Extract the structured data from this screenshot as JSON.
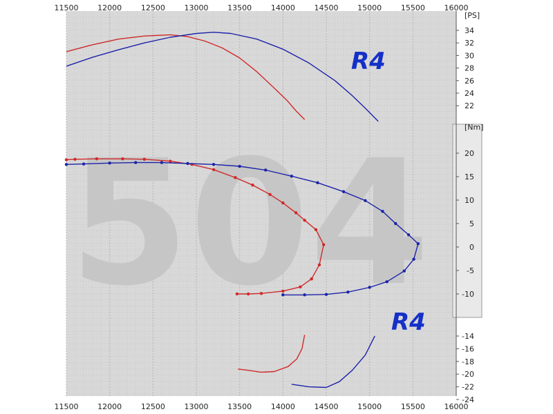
{
  "chart_data": {
    "type": "line",
    "title": "",
    "xlabel": "",
    "x_range": [
      11500,
      16000
    ],
    "x_ticks": [
      "11500",
      "12000",
      "12500",
      "13000",
      "13500",
      "14000",
      "14500",
      "15000",
      "15500",
      "16000"
    ],
    "grid": true,
    "watermark": "504",
    "logos": [
      "R4",
      "R4"
    ],
    "colors": {
      "red": "#d02828",
      "blue": "#1c22a8",
      "plot_bg": "#d8d8d8",
      "panel": "#e9e9e9"
    },
    "axes": {
      "power": {
        "unit": "[PS]",
        "range": [
          22,
          34
        ],
        "ticks": [
          "22",
          "24",
          "26",
          "28",
          "30",
          "32",
          "34"
        ]
      },
      "torque": {
        "unit": "[Nm]",
        "range": [
          -10,
          20
        ],
        "ticks": [
          "20",
          "15",
          "10",
          "5",
          "0",
          "-5",
          "-10"
        ]
      },
      "lower": {
        "range": [
          -24,
          -14
        ],
        "ticks": [
          "-14",
          "-16",
          "-18",
          "-20",
          "-22",
          "-24"
        ]
      }
    },
    "series": [
      {
        "axis": "power",
        "color": "red",
        "markers": false,
        "points": [
          [
            11500,
            30.6
          ],
          [
            11800,
            31.7
          ],
          [
            12100,
            32.6
          ],
          [
            12400,
            33.1
          ],
          [
            12700,
            33.3
          ],
          [
            12900,
            33.0
          ],
          [
            13100,
            32.3
          ],
          [
            13300,
            31.2
          ],
          [
            13500,
            29.6
          ],
          [
            13700,
            27.4
          ],
          [
            13900,
            24.8
          ],
          [
            14050,
            22.8
          ],
          [
            14150,
            21.2
          ],
          [
            14250,
            19.8
          ]
        ]
      },
      {
        "axis": "lower",
        "color": "red",
        "markers": false,
        "points": [
          [
            14250,
            -13.8
          ],
          [
            14220,
            -16.0
          ],
          [
            14160,
            -17.6
          ],
          [
            14060,
            -18.8
          ],
          [
            13900,
            -19.6
          ],
          [
            13750,
            -19.7
          ],
          [
            13600,
            -19.4
          ],
          [
            13480,
            -19.2
          ]
        ]
      },
      {
        "axis": "power",
        "color": "blue",
        "markers": false,
        "points": [
          [
            11500,
            28.3
          ],
          [
            11800,
            29.7
          ],
          [
            12100,
            30.9
          ],
          [
            12400,
            32.0
          ],
          [
            12700,
            32.9
          ],
          [
            13000,
            33.5
          ],
          [
            13200,
            33.7
          ],
          [
            13400,
            33.5
          ],
          [
            13700,
            32.6
          ],
          [
            14000,
            31.0
          ],
          [
            14300,
            28.8
          ],
          [
            14600,
            26.0
          ],
          [
            14800,
            23.6
          ],
          [
            14950,
            21.6
          ],
          [
            15100,
            19.5
          ]
        ]
      },
      {
        "axis": "lower",
        "color": "blue",
        "markers": false,
        "points": [
          [
            15060,
            -14.0
          ],
          [
            14950,
            -17.0
          ],
          [
            14800,
            -19.4
          ],
          [
            14650,
            -21.2
          ],
          [
            14500,
            -22.1
          ],
          [
            14300,
            -22.0
          ],
          [
            14100,
            -21.6
          ]
        ]
      },
      {
        "axis": "torque",
        "color": "red",
        "markers": true,
        "points": [
          [
            11500,
            18.6
          ],
          [
            11600,
            18.7
          ],
          [
            11850,
            18.8
          ],
          [
            12150,
            18.8
          ],
          [
            12400,
            18.7
          ],
          [
            12700,
            18.3
          ],
          [
            12950,
            17.6
          ],
          [
            13200,
            16.5
          ],
          [
            13450,
            14.8
          ],
          [
            13650,
            13.2
          ],
          [
            13850,
            11.2
          ],
          [
            14000,
            9.4
          ],
          [
            14150,
            7.3
          ],
          [
            14250,
            5.7
          ],
          [
            14380,
            3.7
          ],
          [
            14470,
            0.5
          ],
          [
            14420,
            -3.8
          ],
          [
            14330,
            -6.8
          ],
          [
            14200,
            -8.5
          ],
          [
            14000,
            -9.4
          ],
          [
            13750,
            -9.9
          ],
          [
            13600,
            -10.0
          ],
          [
            13470,
            -10.0
          ]
        ]
      },
      {
        "axis": "torque",
        "color": "blue",
        "markers": true,
        "points": [
          [
            11500,
            17.6
          ],
          [
            11700,
            17.7
          ],
          [
            12000,
            17.9
          ],
          [
            12300,
            18.0
          ],
          [
            12600,
            18.0
          ],
          [
            12900,
            17.8
          ],
          [
            13200,
            17.6
          ],
          [
            13500,
            17.2
          ],
          [
            13800,
            16.4
          ],
          [
            14100,
            15.1
          ],
          [
            14400,
            13.7
          ],
          [
            14700,
            11.8
          ],
          [
            14950,
            9.9
          ],
          [
            15150,
            7.6
          ],
          [
            15300,
            5.0
          ],
          [
            15450,
            2.6
          ],
          [
            15560,
            0.7
          ],
          [
            15510,
            -2.6
          ],
          [
            15400,
            -5.1
          ],
          [
            15200,
            -7.4
          ],
          [
            15000,
            -8.6
          ],
          [
            14750,
            -9.6
          ],
          [
            14500,
            -10.1
          ],
          [
            14250,
            -10.2
          ],
          [
            14000,
            -10.2
          ]
        ]
      }
    ]
  }
}
